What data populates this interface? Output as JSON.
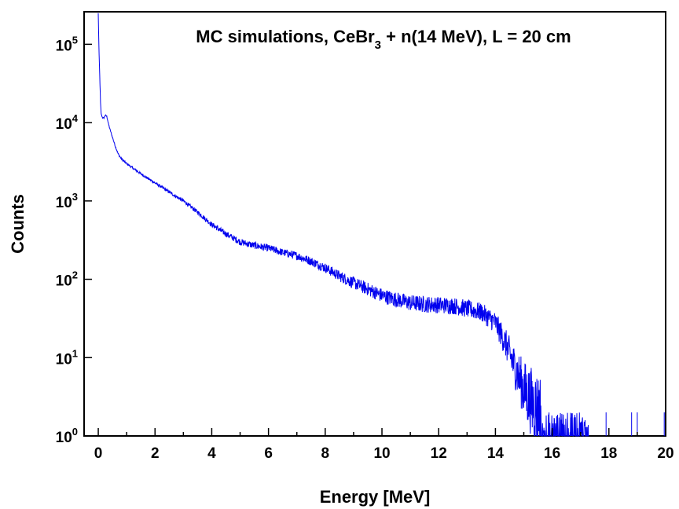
{
  "chart_data": {
    "type": "line",
    "title_parts": [
      "MC simulations, CeBr",
      "3",
      " + n(14 MeV), L = 20 cm"
    ],
    "xlabel": "Energy [MeV]",
    "ylabel": "Counts",
    "xlim": [
      -0.5,
      20
    ],
    "ylim": [
      1,
      260000
    ],
    "yscale": "log",
    "grid": false,
    "legend": "none",
    "x_ticks": [
      0,
      2,
      4,
      6,
      8,
      10,
      12,
      14,
      16,
      18,
      20
    ],
    "x_tick_labels": [
      "0",
      "2",
      "4",
      "6",
      "8",
      "10",
      "12",
      "14",
      "16",
      "18",
      "20"
    ],
    "y_ticks": [
      1,
      10,
      100,
      1000,
      10000,
      100000
    ],
    "y_tick_labels": [
      {
        "base": "10",
        "exp": "0"
      },
      {
        "base": "10",
        "exp": "1"
      },
      {
        "base": "10",
        "exp": "2"
      },
      {
        "base": "10",
        "exp": "3"
      },
      {
        "base": "10",
        "exp": "4"
      },
      {
        "base": "10",
        "exp": "5"
      }
    ],
    "line_color": "#0000ee",
    "series": [
      {
        "x": [
          0.0,
          0.02,
          0.05,
          0.08,
          0.1,
          0.15,
          0.2,
          0.25,
          0.3,
          0.35,
          0.4,
          0.5,
          0.6,
          0.7,
          0.8,
          1.0,
          1.3,
          1.6,
          2.0,
          2.5,
          3.0,
          3.5,
          4.0,
          4.5,
          5.0,
          5.5,
          6.0,
          6.5,
          7.0,
          7.5,
          8.0,
          8.5,
          9.0,
          9.5,
          10.0,
          10.5,
          11.0,
          11.5,
          12.0,
          12.5,
          13.0,
          13.5,
          14.0,
          14.2,
          14.4,
          14.6,
          14.8,
          15.0,
          15.2,
          15.4,
          15.6,
          15.8,
          16.0,
          16.3,
          16.6,
          17.0,
          17.3
        ],
        "y": [
          250000,
          100000,
          40000,
          18000,
          13000,
          11500,
          11500,
          12500,
          12000,
          10000,
          8500,
          6500,
          5000,
          4000,
          3500,
          3000,
          2500,
          2100,
          1700,
          1300,
          1000,
          720,
          500,
          380,
          300,
          270,
          250,
          220,
          200,
          170,
          140,
          110,
          90,
          75,
          62,
          55,
          50,
          48,
          47,
          46,
          42,
          38,
          28,
          20,
          14,
          9,
          6,
          4,
          3,
          2.3,
          2,
          1.7,
          1.5,
          1.4,
          1.3,
          1.2,
          1.1
        ]
      }
    ]
  }
}
